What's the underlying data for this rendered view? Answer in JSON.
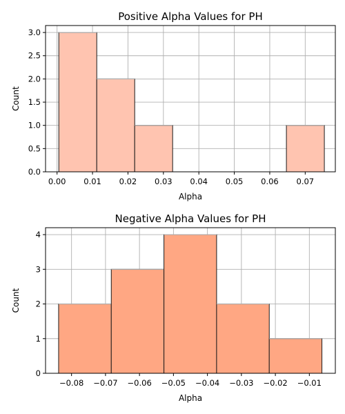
{
  "chart_data": [
    {
      "type": "bar",
      "title": "Positive Alpha Values for PH",
      "xlabel": "Alpha",
      "ylabel": "Count",
      "xlim": [
        -0.00325,
        0.0785
      ],
      "ylim": [
        0,
        3.15
      ],
      "xticks": [
        0.0,
        0.01,
        0.02,
        0.03,
        0.04,
        0.05,
        0.06,
        0.07
      ],
      "xtick_labels": [
        "0.00",
        "0.01",
        "0.02",
        "0.03",
        "0.04",
        "0.05",
        "0.06",
        "0.07"
      ],
      "yticks": [
        0.0,
        0.5,
        1.0,
        1.5,
        2.0,
        2.5,
        3.0
      ],
      "ytick_labels": [
        "0.0",
        "0.5",
        "1.0",
        "1.5",
        "2.0",
        "2.5",
        "3.0"
      ],
      "grid": true,
      "color": "#FFC4B0",
      "bins": [
        {
          "x0": 0.0005,
          "x1": 0.0112,
          "count": 3
        },
        {
          "x0": 0.0112,
          "x1": 0.0219,
          "count": 2
        },
        {
          "x0": 0.0219,
          "x1": 0.0326,
          "count": 1
        },
        {
          "x0": 0.0326,
          "x1": 0.0433,
          "count": 0
        },
        {
          "x0": 0.0433,
          "x1": 0.054,
          "count": 0
        },
        {
          "x0": 0.054,
          "x1": 0.0647,
          "count": 0
        },
        {
          "x0": 0.0647,
          "x1": 0.0754,
          "count": 1
        }
      ]
    },
    {
      "type": "bar",
      "title": "Negative Alpha Values for PH",
      "xlabel": "Alpha",
      "ylabel": "Count",
      "xlim": [
        -0.08765,
        -0.00235
      ],
      "ylim": [
        0,
        4.2
      ],
      "xticks": [
        -0.08,
        -0.07,
        -0.06,
        -0.05,
        -0.04,
        -0.03,
        -0.02,
        -0.01
      ],
      "xtick_labels": [
        "−0.08",
        "−0.07",
        "−0.06",
        "−0.05",
        "−0.04",
        "−0.03",
        "−0.02",
        "−0.01"
      ],
      "yticks": [
        0,
        1,
        2,
        3,
        4
      ],
      "ytick_labels": [
        "0",
        "1",
        "2",
        "3",
        "4"
      ],
      "grid": true,
      "color": "#FFA783",
      "bins": [
        {
          "x0": -0.0838,
          "x1": -0.0683,
          "count": 2
        },
        {
          "x0": -0.0683,
          "x1": -0.0528,
          "count": 3
        },
        {
          "x0": -0.0528,
          "x1": -0.0373,
          "count": 4
        },
        {
          "x0": -0.0373,
          "x1": -0.0218,
          "count": 2
        },
        {
          "x0": -0.0218,
          "x1": -0.0063,
          "count": 1
        }
      ]
    }
  ]
}
